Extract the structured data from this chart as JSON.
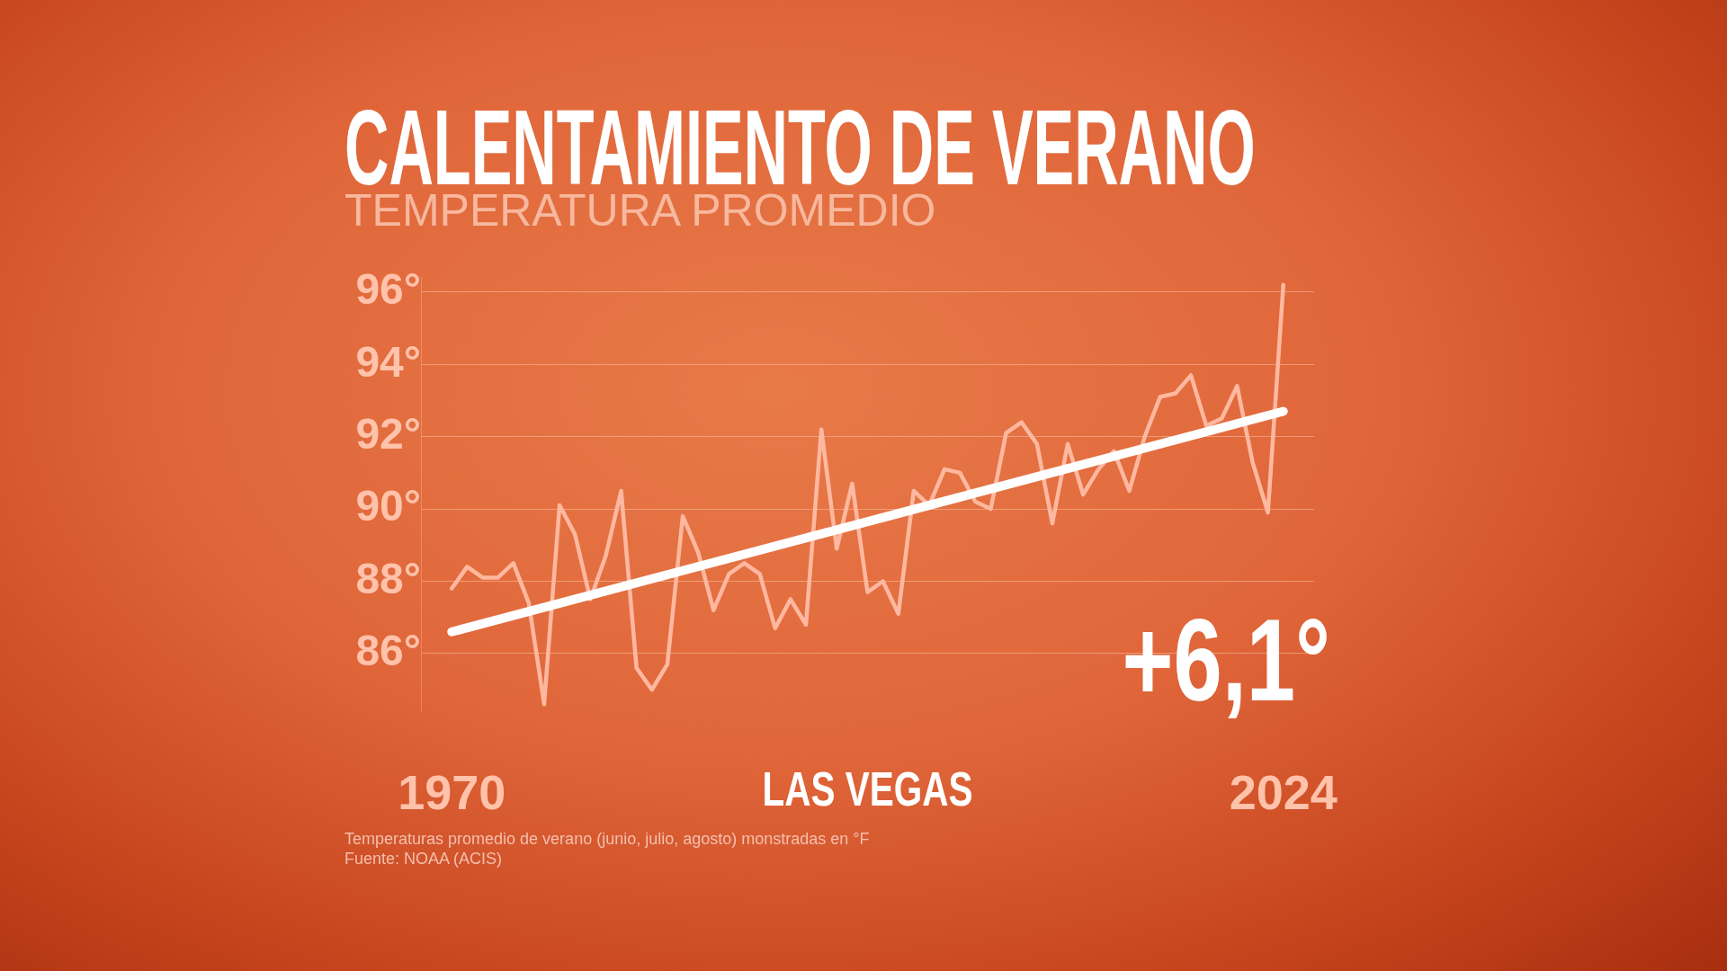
{
  "chart_data": {
    "type": "line",
    "title": "CALENTAMIENTO DE VERANO",
    "subtitle": "TEMPERATURA PROMEDIO",
    "xlabel": "LAS VEGAS",
    "annotations": [
      "+6,1°",
      "Temperaturas promedio de verano (junio, julio, agosto) monstradas en °F",
      "Fuente: NOAA (ACIS)"
    ],
    "x": [
      1970,
      1971,
      1972,
      1973,
      1974,
      1975,
      1976,
      1977,
      1978,
      1979,
      1980,
      1981,
      1982,
      1983,
      1984,
      1985,
      1986,
      1987,
      1988,
      1989,
      1990,
      1991,
      1992,
      1993,
      1994,
      1995,
      1996,
      1997,
      1998,
      1999,
      2000,
      2001,
      2002,
      2003,
      2004,
      2005,
      2006,
      2007,
      2008,
      2009,
      2010,
      2011,
      2012,
      2013,
      2014,
      2015,
      2016,
      2017,
      2018,
      2019,
      2020,
      2021,
      2022,
      2023,
      2024
    ],
    "series": [
      {
        "color": "#ffb8a0",
        "values": [
          87.8,
          88.4,
          88.1,
          88.1,
          88.5,
          87.4,
          84.6,
          90.1,
          89.3,
          87.5,
          88.7,
          90.5,
          85.6,
          85.0,
          85.7,
          89.8,
          88.8,
          87.2,
          88.2,
          88.5,
          88.2,
          86.7,
          87.5,
          86.8,
          92.2,
          88.9,
          90.7,
          87.7,
          88.0,
          87.1,
          90.5,
          90.1,
          91.1,
          91.0,
          90.2,
          90.0,
          92.1,
          92.4,
          91.8,
          89.6,
          91.8,
          90.4,
          91.1,
          91.6,
          90.5,
          92.0,
          93.1,
          93.2,
          93.7,
          92.3,
          92.5,
          93.4,
          91.3,
          89.9,
          96.2
        ]
      },
      {
        "type": "line",
        "color": "#ffffff",
        "x": [
          1970,
          2024
        ],
        "values": [
          86.6,
          92.7
        ]
      }
    ],
    "xlim": [
      1968,
      2026
    ],
    "xticks": [
      1970,
      2024
    ],
    "ylim": [
      84.4,
      96.4
    ],
    "yticks": [
      {
        "value": 86,
        "label": "86°"
      },
      {
        "value": 88,
        "label": "88°"
      },
      {
        "value": 90,
        "label": "90°"
      },
      {
        "value": 92,
        "label": "92°"
      },
      {
        "value": 94,
        "label": "94°"
      },
      {
        "value": 96,
        "label": "96°"
      }
    ],
    "grid": "y",
    "legend": false,
    "marker": "none",
    "line_style": "solid"
  }
}
